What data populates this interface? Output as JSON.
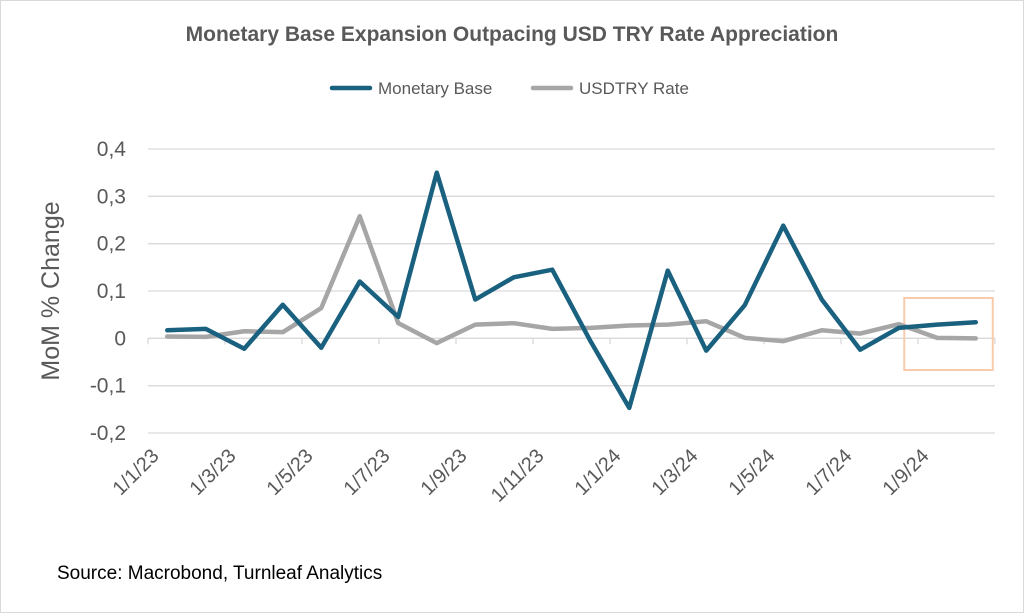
{
  "chart_data": {
    "type": "line",
    "title": "Monetary Base Expansion Outpacing USD TRY Rate Appreciation",
    "ylabel": "MoM % Change",
    "xlabel": "",
    "ylim": [
      -0.2,
      0.4
    ],
    "yticks": [
      -0.2,
      -0.1,
      0,
      0.1,
      0.2,
      0.3,
      0.4
    ],
    "ytick_labels": [
      "-0,2",
      "-0,1",
      "0",
      "0,1",
      "0,2",
      "0,3",
      "0,4"
    ],
    "categories": [
      "Jan 2023",
      "Feb 2023",
      "Mar 2023",
      "Apr 2023",
      "May 2023",
      "Jun 2023",
      "Jul 2023",
      "Aug 2023",
      "Sep 2023",
      "Oct 2023",
      "Nov 2023",
      "Dec 2023",
      "Jan 2024",
      "Feb 2024",
      "Mar 2024",
      "Apr 2024",
      "May 2024",
      "Jun 2024",
      "Jul 2024",
      "Aug 2024",
      "Sep 2024",
      "Oct 2024"
    ],
    "xtick_labels": [
      "1/1/23",
      "1/3/23",
      "1/5/23",
      "1/7/23",
      "1/9/23",
      "1/11/23",
      "1/1/24",
      "1/3/24",
      "1/5/24",
      "1/7/24",
      "1/9/24"
    ],
    "grid": "horizontal",
    "legend": "top",
    "series": [
      {
        "name": "Monetary Base",
        "color": "#1a6180",
        "values": [
          0.017,
          0.02,
          -0.022,
          0.071,
          -0.02,
          0.12,
          0.045,
          0.35,
          0.082,
          0.129,
          0.145,
          -0.007,
          -0.147,
          0.143,
          -0.026,
          0.07,
          0.238,
          0.082,
          -0.024,
          0.022,
          0.029,
          0.034
        ]
      },
      {
        "name": "USDTRY Rate",
        "color": "#a6a6a6",
        "values": [
          0.004,
          0.003,
          0.015,
          0.013,
          0.064,
          0.258,
          0.032,
          -0.01,
          0.029,
          0.032,
          0.02,
          0.022,
          0.027,
          0.029,
          0.036,
          0.001,
          -0.006,
          0.017,
          0.01,
          0.03,
          0.001,
          0.0
        ]
      }
    ],
    "highlight": {
      "from": "Sep 2024",
      "to": "Oct 2024",
      "color": "#f8cbad"
    }
  },
  "source": "Source: Macrobond, Turnleaf Analytics"
}
